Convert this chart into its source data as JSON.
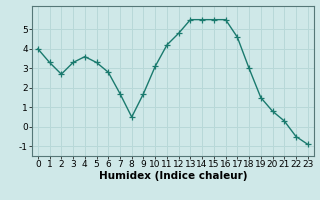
{
  "x": [
    0,
    1,
    2,
    3,
    4,
    5,
    6,
    7,
    8,
    9,
    10,
    11,
    12,
    13,
    14,
    15,
    16,
    17,
    18,
    19,
    20,
    21,
    22,
    23
  ],
  "y": [
    4.0,
    3.3,
    2.7,
    3.3,
    3.6,
    3.3,
    2.8,
    1.7,
    0.5,
    1.7,
    3.1,
    4.2,
    4.8,
    5.5,
    5.5,
    5.5,
    5.5,
    4.6,
    3.0,
    1.5,
    0.8,
    0.3,
    -0.5,
    -0.9
  ],
  "line_color": "#1a7a6e",
  "marker": "+",
  "markersize": 4,
  "linewidth": 1.0,
  "background_color": "#cfe8e8",
  "grid_color": "#b8d8d8",
  "xlabel": "Humidex (Indice chaleur)",
  "xlabel_fontsize": 7.5,
  "ylim": [
    -1.5,
    6.2
  ],
  "xlim": [
    -0.5,
    23.5
  ],
  "yticks": [
    -1,
    0,
    1,
    2,
    3,
    4,
    5
  ],
  "xticks": [
    0,
    1,
    2,
    3,
    4,
    5,
    6,
    7,
    8,
    9,
    10,
    11,
    12,
    13,
    14,
    15,
    16,
    17,
    18,
    19,
    20,
    21,
    22,
    23
  ],
  "tick_fontsize": 6.5
}
